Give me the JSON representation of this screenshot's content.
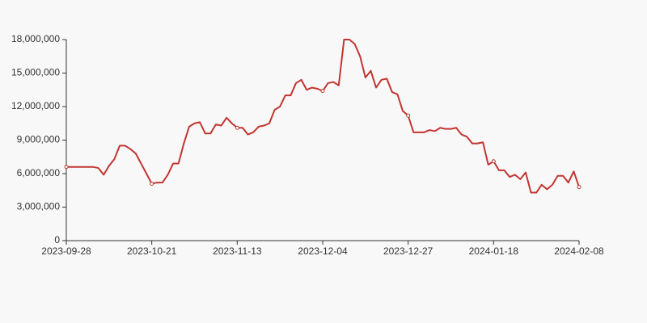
{
  "chart_data": {
    "type": "line",
    "categories": [
      "2023-09-28",
      null,
      null,
      null,
      null,
      null,
      null,
      null,
      null,
      null,
      null,
      null,
      null,
      null,
      null,
      null,
      "2023-10-21",
      null,
      null,
      null,
      null,
      null,
      null,
      null,
      null,
      null,
      null,
      null,
      null,
      null,
      null,
      null,
      "2023-11-13",
      null,
      null,
      null,
      null,
      null,
      null,
      null,
      null,
      null,
      null,
      null,
      null,
      null,
      null,
      null,
      "2023-12-04",
      null,
      null,
      null,
      null,
      null,
      null,
      null,
      null,
      null,
      null,
      null,
      null,
      null,
      null,
      null,
      "2023-12-27",
      null,
      null,
      null,
      null,
      null,
      null,
      null,
      null,
      null,
      null,
      null,
      null,
      null,
      null,
      null,
      "2024-01-18",
      null,
      null,
      null,
      null,
      null,
      null,
      null,
      null,
      null,
      null,
      null,
      null,
      null,
      null,
      null,
      "2024-02-08"
    ],
    "values": [
      6600000,
      6600000,
      6600000,
      6600000,
      6600000,
      6600000,
      6500000,
      5900000,
      6700000,
      7300000,
      8500000,
      8500000,
      8200000,
      7800000,
      6900000,
      6000000,
      5100000,
      5200000,
      5200000,
      5900000,
      6900000,
      6900000,
      8700000,
      10200000,
      10500000,
      10600000,
      9600000,
      9600000,
      10400000,
      10300000,
      11000000,
      10500000,
      10100000,
      10100000,
      9500000,
      9700000,
      10200000,
      10300000,
      10500000,
      11700000,
      12000000,
      13000000,
      13000000,
      14100000,
      14400000,
      13500000,
      13700000,
      13600000,
      13400000,
      14100000,
      14200000,
      13900000,
      18000000,
      18000000,
      17600000,
      16500000,
      14600000,
      15200000,
      13700000,
      14400000,
      14500000,
      13300000,
      13100000,
      11600000,
      11200000,
      9700000,
      9700000,
      9700000,
      9900000,
      9800000,
      10100000,
      10000000,
      10000000,
      10100000,
      9500000,
      9300000,
      8700000,
      8700000,
      8800000,
      6800000,
      7100000,
      6300000,
      6300000,
      5700000,
      5900000,
      5500000,
      6100000,
      4300000,
      4300000,
      5000000,
      4600000,
      5000000,
      5800000,
      5800000,
      5200000,
      6200000,
      4800000
    ],
    "color": "#c23531",
    "ylim": [
      0,
      18000000
    ],
    "yticks": [
      0,
      {
        "value": 3000000,
        "label": "3,000,000"
      },
      {
        "value": 6000000,
        "label": "6,000,000"
      },
      {
        "value": 9000000,
        "label": "9,000,000"
      },
      {
        "value": 12000000,
        "label": "12,000,000"
      },
      {
        "value": 15000000,
        "label": "15,000,000"
      },
      {
        "value": 18000000,
        "label": "18,000,000"
      }
    ]
  }
}
